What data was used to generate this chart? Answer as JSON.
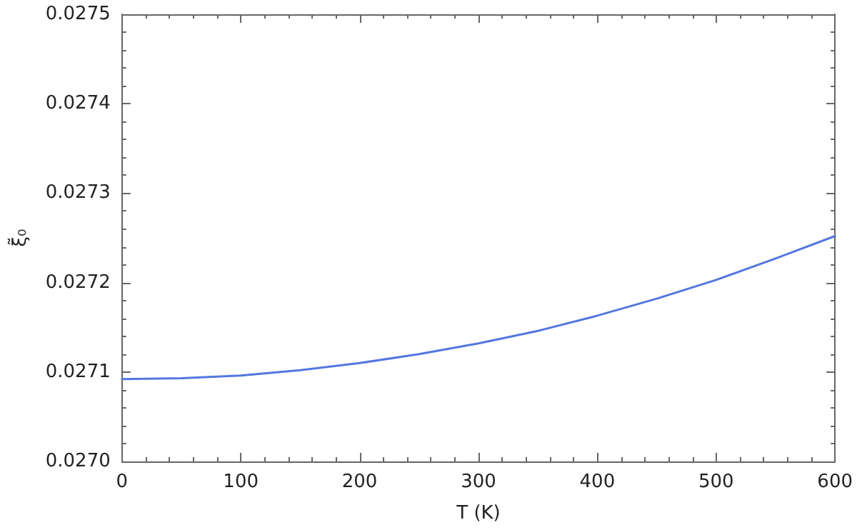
{
  "chart_data": {
    "type": "line",
    "xlabel": "T (K)",
    "ylabel": "ξ̃₀",
    "x": [
      0,
      50,
      100,
      150,
      200,
      250,
      300,
      350,
      400,
      450,
      500,
      550,
      600
    ],
    "series": [
      {
        "color": "#5377e0",
        "values": [
          0.027092,
          0.027093,
          0.027096,
          0.027102,
          0.02711,
          0.02712,
          0.027132,
          0.027146,
          0.027163,
          0.027182,
          0.027203,
          0.027227,
          0.027252
        ]
      }
    ],
    "xlim": [
      0,
      600
    ],
    "xticks": [
      0,
      100,
      200,
      300,
      400,
      500,
      600
    ],
    "ylim": [
      0.027,
      0.0275
    ],
    "yticks": [
      {
        "value": 0.027,
        "label": "0.0270"
      },
      {
        "value": 0.0271,
        "label": "0.0271"
      },
      {
        "value": 0.0272,
        "label": "0.0272"
      },
      {
        "value": 0.0273,
        "label": "0.0273"
      },
      {
        "value": 0.0274,
        "label": "0.0274"
      },
      {
        "value": 0.0275,
        "label": "0.0275"
      }
    ],
    "grid": false,
    "marker": "none",
    "line_style": "solid"
  }
}
